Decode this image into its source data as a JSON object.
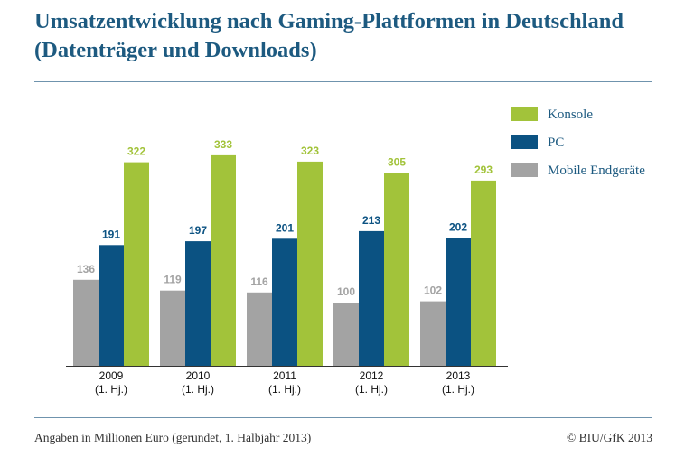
{
  "title_line1": "Umsatzentwicklung nach Gaming-Plattformen in Deutschland",
  "title_line2": "(Datenträger und Downloads)",
  "footer_note": "Angaben in Millionen Euro (gerundet, 1. Halbjahr 2013)",
  "copyright": "© BIU/GfK 2013",
  "chart_data": {
    "type": "bar",
    "categories": [
      [
        "2009",
        "(1. Hj.)"
      ],
      [
        "2010",
        "(1. Hj.)"
      ],
      [
        "2011",
        "(1. Hj.)"
      ],
      [
        "2012",
        "(1. Hj.)"
      ],
      [
        "2013",
        "(1. Hj.)"
      ]
    ],
    "series": [
      {
        "name": "Mobile Endgeräte",
        "color": "#a3a3a3",
        "values": [
          136,
          119,
          116,
          100,
          102
        ]
      },
      {
        "name": "PC",
        "color": "#0b5282",
        "values": [
          191,
          197,
          201,
          213,
          202
        ]
      },
      {
        "name": "Konsole",
        "color": "#a2c33a",
        "values": [
          322,
          333,
          323,
          305,
          293
        ]
      }
    ],
    "legend_order": [
      "Konsole",
      "PC",
      "Mobile Endgeräte"
    ],
    "legend_position": "top-right",
    "data_labels": true,
    "grid": false
  }
}
